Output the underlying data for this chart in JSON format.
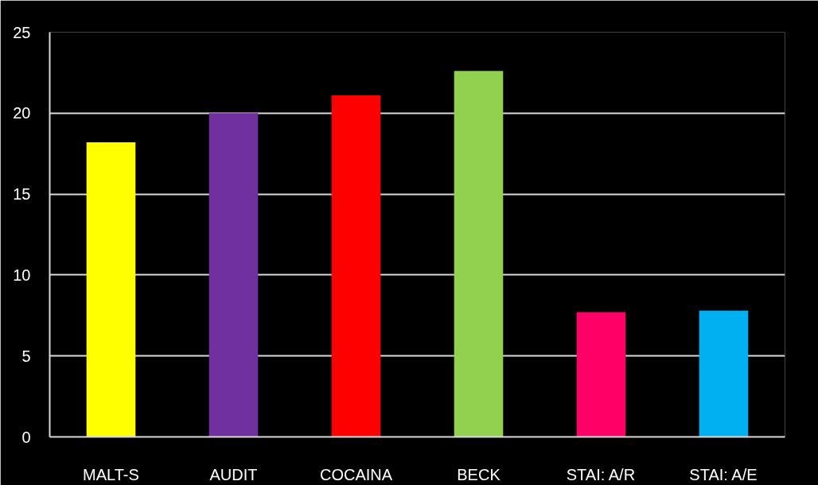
{
  "chart_data": {
    "type": "bar",
    "categories": [
      "MALT-S",
      "AUDIT",
      "COCAINA",
      "BECK",
      "STAI: A/R",
      "STAI: A/E"
    ],
    "values": [
      18.2,
      20.0,
      21.1,
      22.6,
      7.7,
      7.8
    ],
    "colors": [
      "#ffff00",
      "#7030a0",
      "#ff0000",
      "#92d050",
      "#ff0066",
      "#00b0f0"
    ],
    "ylim": [
      0,
      25
    ],
    "yticks": [
      0,
      5,
      10,
      15,
      20,
      25
    ],
    "grid": "y"
  }
}
